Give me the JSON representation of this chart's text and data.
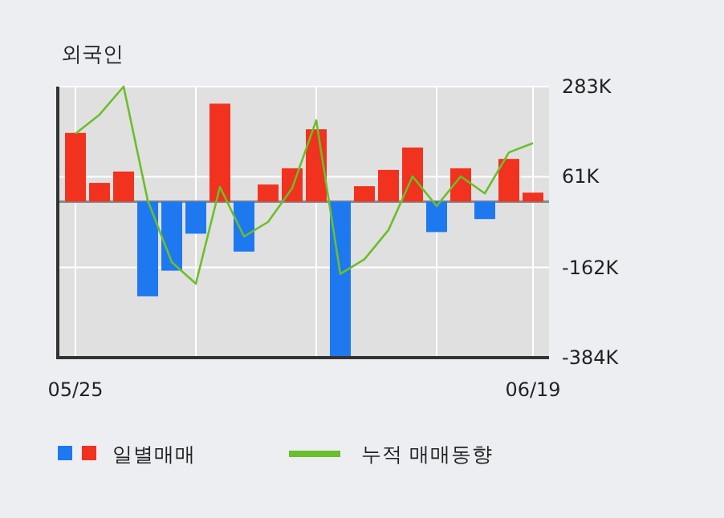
{
  "chart_data": {
    "type": "bar",
    "title": "외국인",
    "categories": [
      "05/25",
      null,
      null,
      null,
      null,
      null,
      null,
      null,
      null,
      null,
      null,
      null,
      null,
      null,
      null,
      null,
      null,
      null,
      null,
      "06/19"
    ],
    "series": [
      {
        "name": "일별매매",
        "colors": [
          "#f0321e",
          "#f0321e",
          "#f0321e",
          "#1e78f0",
          "#1e78f0",
          "#1e78f0",
          "#f0321e",
          "#1e78f0",
          "#f0321e",
          "#f0321e",
          "#f0321e",
          "#1e78f0",
          "#f0321e",
          "#f0321e",
          "#f0321e",
          "#1e78f0",
          "#f0321e",
          "#1e78f0",
          "#f0321e",
          "#f0321e"
        ],
        "values": [
          169,
          46,
          74,
          -233,
          -170,
          -79,
          241,
          -123,
          42,
          82,
          178,
          -380,
          38,
          78,
          133,
          -75,
          82,
          -43,
          105,
          22
        ]
      },
      {
        "name": "누적 매매동향",
        "type": "line",
        "color": "#6abf2a",
        "values": [
          167,
          214,
          283,
          3,
          -149,
          -202,
          36,
          -86,
          -50,
          33,
          200,
          -178,
          -142,
          -70,
          62,
          -11,
          62,
          20,
          121,
          144
        ]
      }
    ],
    "ylim": [
      -384,
      283
    ],
    "yticks": [
      {
        "value": 283,
        "label": "283K"
      },
      {
        "value": 61,
        "label": "61K"
      },
      {
        "value": -162,
        "label": "-162K"
      },
      {
        "value": -384,
        "label": "-384K"
      }
    ],
    "grid": true,
    "legend": "bottom"
  }
}
